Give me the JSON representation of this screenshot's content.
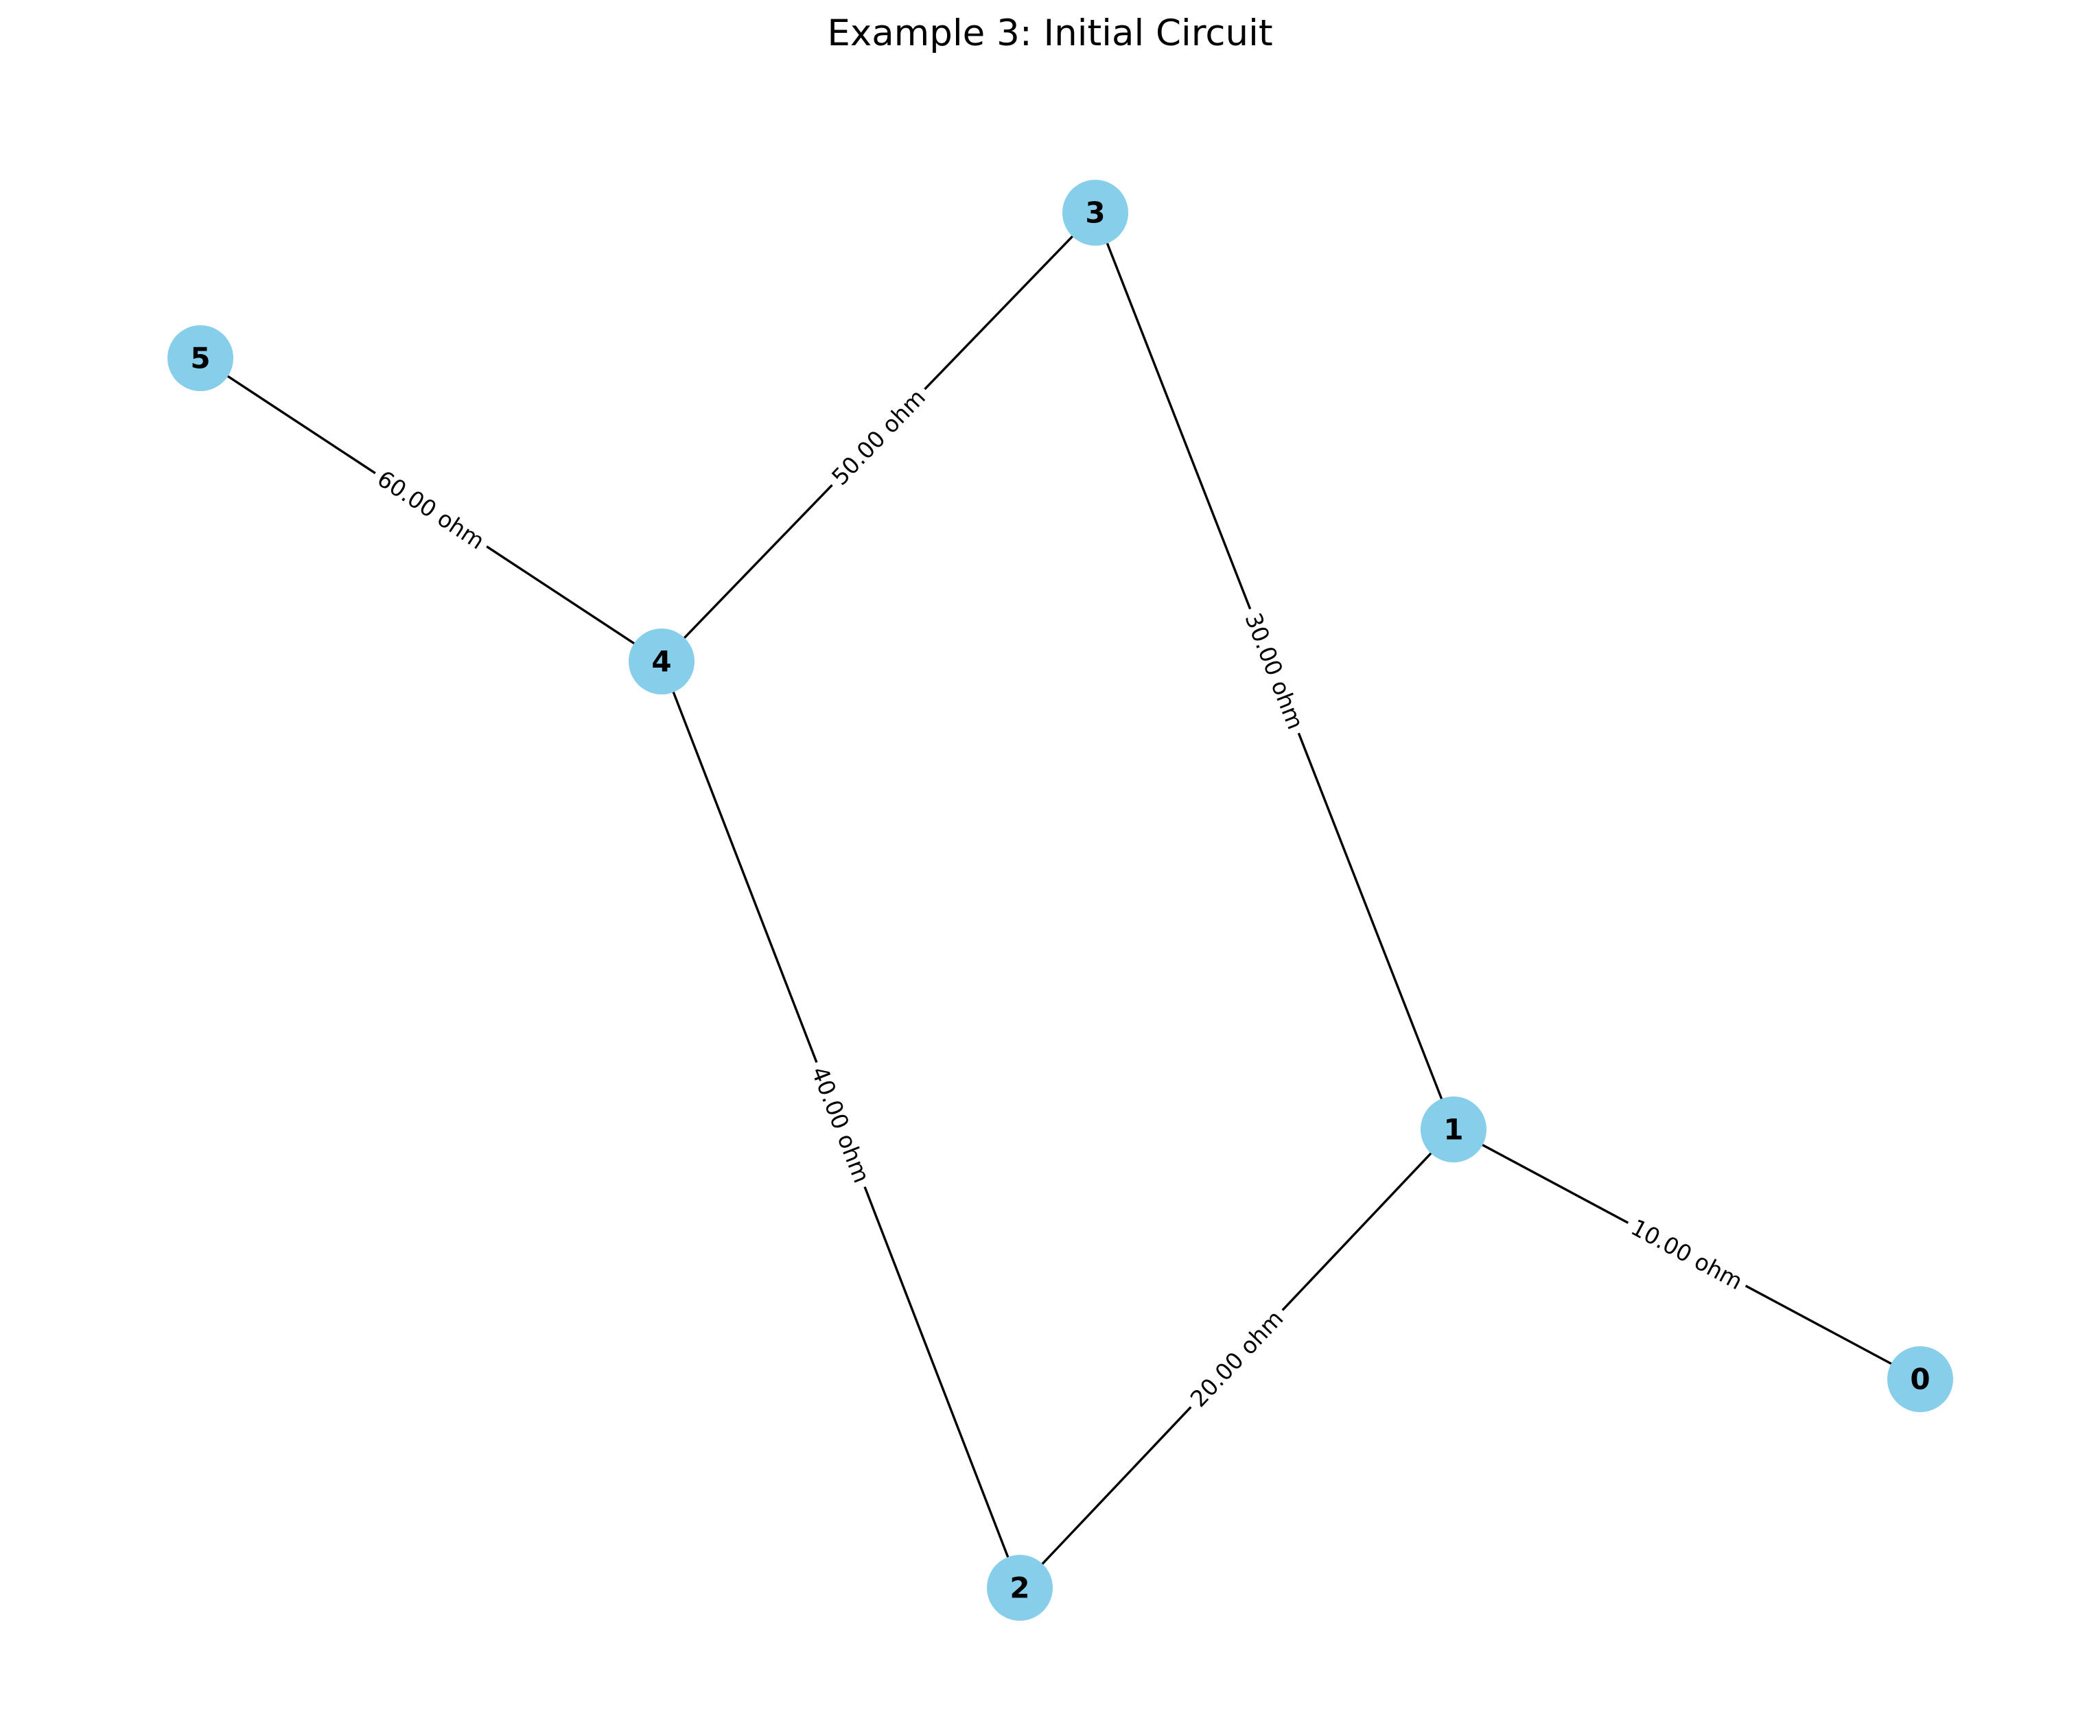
{
  "title": "Example 3: Initial Circuit",
  "colors": {
    "node_fill": "#87ceeb",
    "edge": "#000000"
  },
  "nodes": [
    {
      "id": "0",
      "label": "0"
    },
    {
      "id": "1",
      "label": "1"
    },
    {
      "id": "2",
      "label": "2"
    },
    {
      "id": "3",
      "label": "3"
    },
    {
      "id": "4",
      "label": "4"
    },
    {
      "id": "5",
      "label": "5"
    }
  ],
  "edges": [
    {
      "source": "0",
      "target": "1",
      "label": "10.00 ohm"
    },
    {
      "source": "1",
      "target": "2",
      "label": "20.00 ohm"
    },
    {
      "source": "1",
      "target": "3",
      "label": "30.00 ohm"
    },
    {
      "source": "2",
      "target": "4",
      "label": "40.00 ohm"
    },
    {
      "source": "3",
      "target": "4",
      "label": "50.00 ohm"
    },
    {
      "source": "4",
      "target": "5",
      "label": "60.00 ohm"
    }
  ]
}
